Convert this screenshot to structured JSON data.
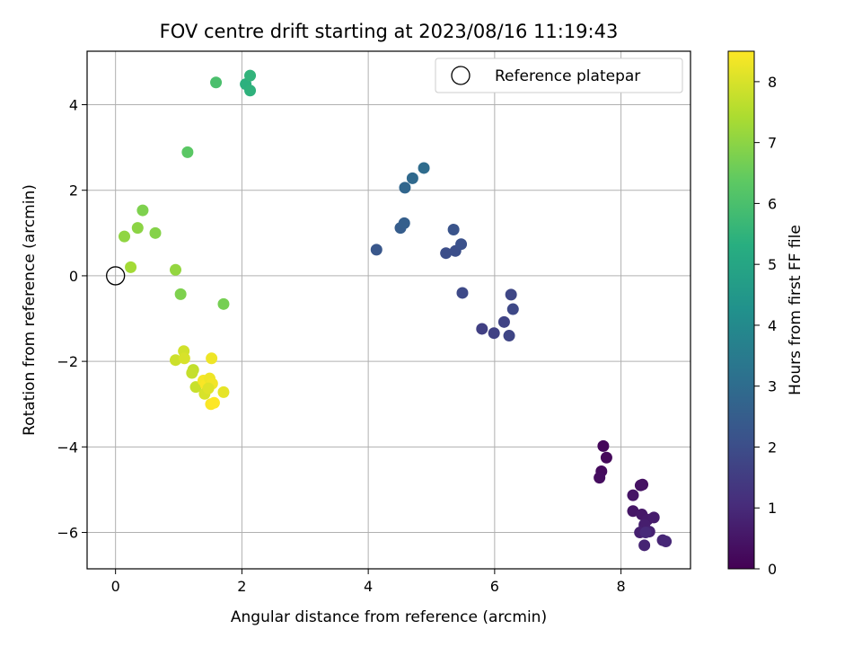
{
  "chart_data": {
    "type": "scatter",
    "title": "FOV centre drift starting at 2023/08/16 11:19:43",
    "xlabel": "Angular distance from reference (arcmin)",
    "ylabel": "Rotation from reference (arcmin)",
    "xlim": [
      -0.45,
      9.1
    ],
    "ylim": [
      -6.85,
      5.25
    ],
    "xticks": [
      0,
      2,
      4,
      6,
      8
    ],
    "yticks": [
      -6,
      -4,
      -2,
      0,
      2,
      4
    ],
    "grid": true,
    "legend": {
      "location": "top-right",
      "entries": [
        "Reference platepar"
      ]
    },
    "reference_point": {
      "x": 0,
      "y": 0
    },
    "colorbar": {
      "label": "Hours from first FF file",
      "range": [
        0,
        8.5
      ],
      "ticks": [
        0,
        1,
        2,
        3,
        4,
        5,
        6,
        7,
        8
      ],
      "colormap": "viridis"
    },
    "points": [
      {
        "x": 7.72,
        "y": -3.98,
        "c": 0.15
      },
      {
        "x": 7.77,
        "y": -4.25,
        "c": 0.2
      },
      {
        "x": 7.69,
        "y": -4.57,
        "c": 0.25
      },
      {
        "x": 7.66,
        "y": -4.72,
        "c": 0.3
      },
      {
        "x": 8.34,
        "y": -4.88,
        "c": 0.35
      },
      {
        "x": 8.31,
        "y": -4.9,
        "c": 0.4
      },
      {
        "x": 8.19,
        "y": -5.13,
        "c": 0.45
      },
      {
        "x": 8.19,
        "y": -5.5,
        "c": 0.5
      },
      {
        "x": 8.33,
        "y": -5.58,
        "c": 0.55
      },
      {
        "x": 8.42,
        "y": -5.7,
        "c": 0.6
      },
      {
        "x": 8.52,
        "y": -5.65,
        "c": 0.65
      },
      {
        "x": 8.37,
        "y": -5.82,
        "c": 0.7
      },
      {
        "x": 8.3,
        "y": -6.0,
        "c": 0.75
      },
      {
        "x": 8.45,
        "y": -5.98,
        "c": 0.8
      },
      {
        "x": 8.37,
        "y": -6.3,
        "c": 0.85
      },
      {
        "x": 8.66,
        "y": -6.18,
        "c": 0.9
      },
      {
        "x": 8.71,
        "y": -6.21,
        "c": 0.95
      },
      {
        "x": 8.39,
        "y": -6.0,
        "c": 1.0
      },
      {
        "x": 5.8,
        "y": -1.24,
        "c": 1.6
      },
      {
        "x": 5.99,
        "y": -1.34,
        "c": 1.65
      },
      {
        "x": 6.15,
        "y": -1.08,
        "c": 1.7
      },
      {
        "x": 6.23,
        "y": -1.4,
        "c": 1.75
      },
      {
        "x": 6.26,
        "y": -0.44,
        "c": 1.8
      },
      {
        "x": 6.29,
        "y": -0.78,
        "c": 1.85
      },
      {
        "x": 5.49,
        "y": -0.4,
        "c": 1.9
      },
      {
        "x": 5.23,
        "y": 0.53,
        "c": 2.0
      },
      {
        "x": 5.38,
        "y": 0.58,
        "c": 2.05
      },
      {
        "x": 5.47,
        "y": 0.74,
        "c": 2.1
      },
      {
        "x": 5.35,
        "y": 1.08,
        "c": 2.2
      },
      {
        "x": 4.13,
        "y": 0.61,
        "c": 2.3
      },
      {
        "x": 4.51,
        "y": 1.12,
        "c": 2.5
      },
      {
        "x": 4.57,
        "y": 1.23,
        "c": 2.55
      },
      {
        "x": 4.58,
        "y": 2.06,
        "c": 2.8
      },
      {
        "x": 4.7,
        "y": 2.28,
        "c": 2.9
      },
      {
        "x": 4.88,
        "y": 2.52,
        "c": 3.0
      },
      {
        "x": 2.06,
        "y": 4.48,
        "c": 5.4
      },
      {
        "x": 2.13,
        "y": 4.33,
        "c": 5.45
      },
      {
        "x": 2.13,
        "y": 4.68,
        "c": 5.5
      },
      {
        "x": 1.59,
        "y": 4.52,
        "c": 6.0
      },
      {
        "x": 1.14,
        "y": 2.89,
        "c": 6.3
      },
      {
        "x": 0.43,
        "y": 1.53,
        "c": 6.8
      },
      {
        "x": 0.63,
        "y": 1.0,
        "c": 6.9
      },
      {
        "x": 0.35,
        "y": 1.12,
        "c": 7.0
      },
      {
        "x": 0.14,
        "y": 0.92,
        "c": 7.05
      },
      {
        "x": 1.71,
        "y": -0.66,
        "c": 6.7
      },
      {
        "x": 1.03,
        "y": -0.43,
        "c": 6.8
      },
      {
        "x": 0.95,
        "y": 0.14,
        "c": 7.1
      },
      {
        "x": 0.24,
        "y": 0.2,
        "c": 7.3
      },
      {
        "x": 1.08,
        "y": -1.76,
        "c": 7.9
      },
      {
        "x": 0.95,
        "y": -1.97,
        "c": 7.85
      },
      {
        "x": 1.09,
        "y": -1.93,
        "c": 8.0
      },
      {
        "x": 1.52,
        "y": -1.93,
        "c": 8.3
      },
      {
        "x": 1.23,
        "y": -2.2,
        "c": 7.7
      },
      {
        "x": 1.21,
        "y": -2.27,
        "c": 7.75
      },
      {
        "x": 1.27,
        "y": -2.6,
        "c": 7.8
      },
      {
        "x": 1.39,
        "y": -2.45,
        "c": 8.4
      },
      {
        "x": 1.43,
        "y": -2.55,
        "c": 8.45
      },
      {
        "x": 1.49,
        "y": -2.4,
        "c": 8.3
      },
      {
        "x": 1.53,
        "y": -2.52,
        "c": 8.35
      },
      {
        "x": 1.41,
        "y": -2.76,
        "c": 8.0
      },
      {
        "x": 1.47,
        "y": -2.63,
        "c": 8.1
      },
      {
        "x": 1.51,
        "y": -3.0,
        "c": 8.45
      },
      {
        "x": 1.56,
        "y": -2.97,
        "c": 8.5
      },
      {
        "x": 1.71,
        "y": -2.72,
        "c": 8.2
      }
    ]
  }
}
